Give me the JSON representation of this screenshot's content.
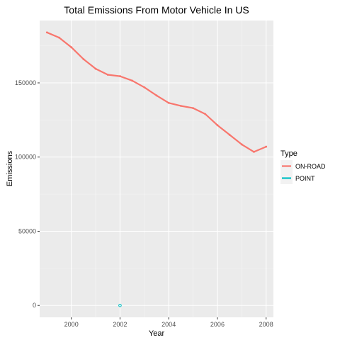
{
  "chart_data": {
    "type": "line",
    "title": "Total Emissions From Motor Vehicle In US",
    "xlabel": "Year",
    "ylabel": "Emissions",
    "xlim": [
      1998.7,
      2008.3
    ],
    "ylim": [
      -8000,
      192000
    ],
    "xticks": [
      2000,
      2002,
      2004,
      2006,
      2008
    ],
    "yticks": [
      0,
      50000,
      100000,
      150000
    ],
    "grid": true,
    "legend": {
      "title": "Type",
      "placement": "right",
      "items": [
        {
          "name": "ON-ROAD",
          "color": "#F8766D"
        },
        {
          "name": "POINT",
          "color": "#00BFC4"
        }
      ]
    },
    "series": [
      {
        "name": "ON-ROAD",
        "color": "#F8766D",
        "x": [
          1999,
          1999.5,
          2000,
          2000.5,
          2001,
          2001.5,
          2002,
          2002.5,
          2003,
          2003.5,
          2004,
          2004.5,
          2005,
          2005.5,
          2006,
          2006.5,
          2007,
          2007.5,
          2008
        ],
        "y": [
          184000,
          180500,
          174000,
          166000,
          159500,
          155500,
          154500,
          151500,
          147000,
          141500,
          136500,
          134500,
          133000,
          129000,
          121500,
          115000,
          108500,
          103500,
          107000
        ]
      },
      {
        "name": "POINT",
        "color": "#00BFC4",
        "x": [
          2002
        ],
        "y": [
          0
        ]
      }
    ]
  }
}
